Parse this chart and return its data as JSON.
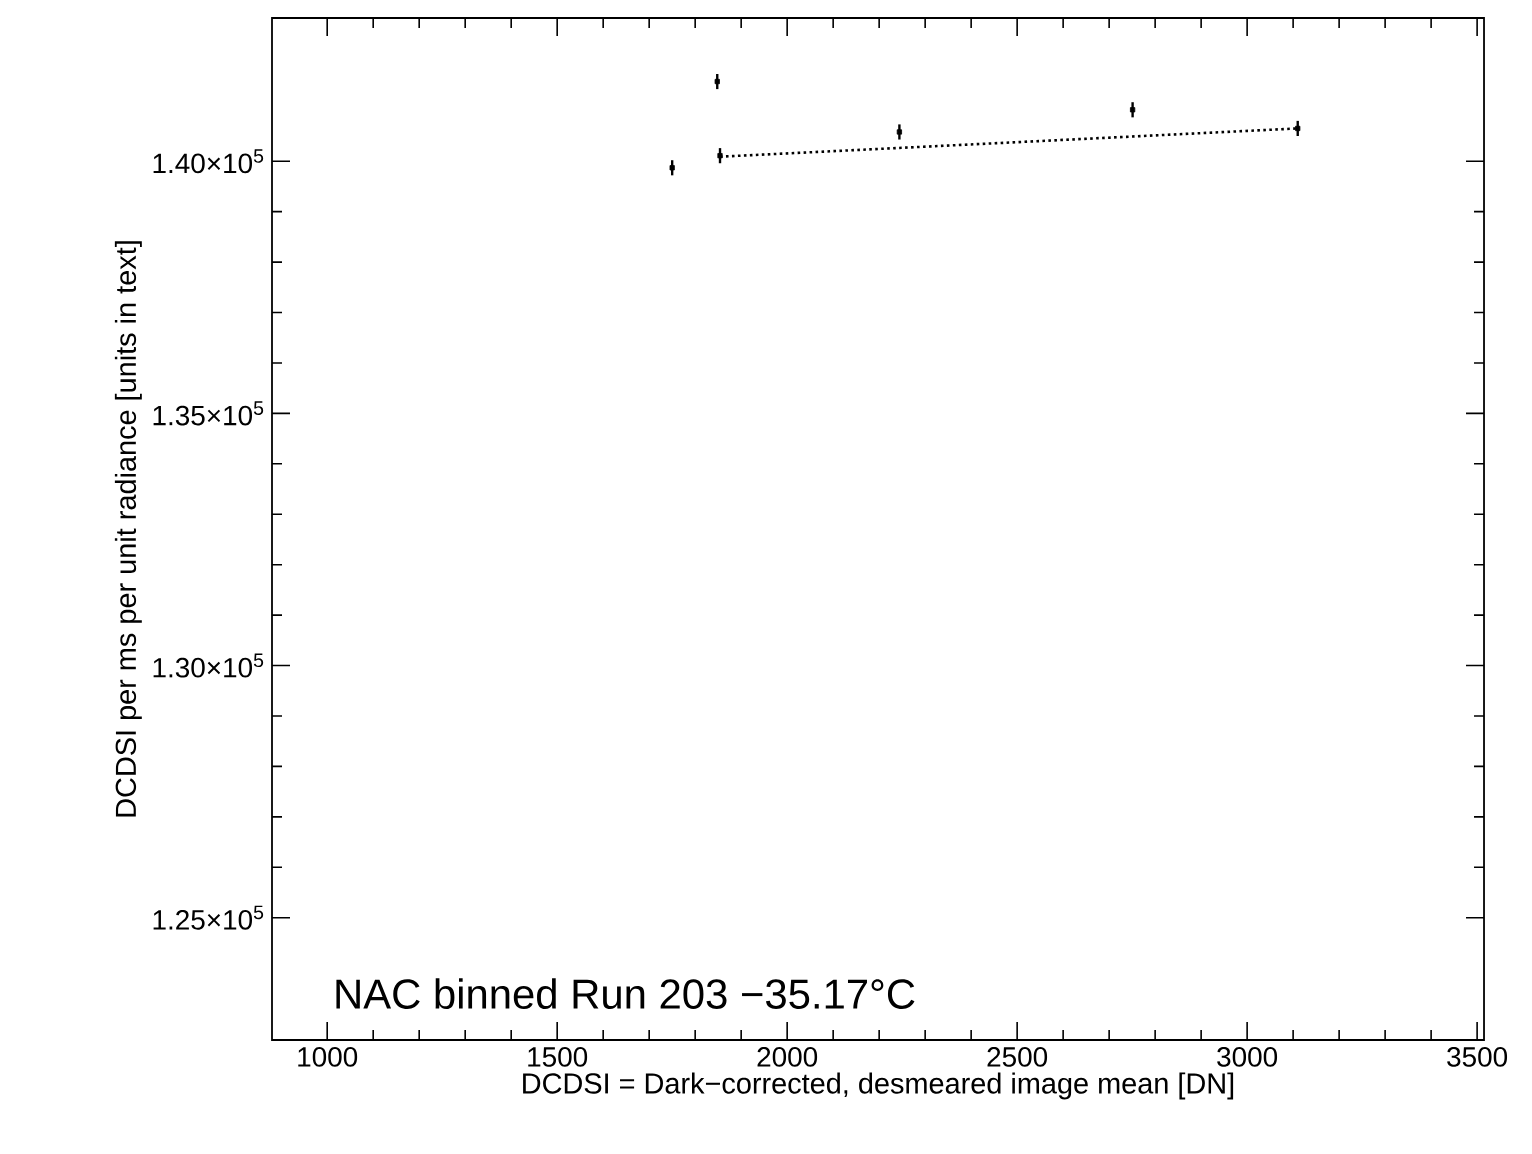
{
  "chart_data": {
    "type": "scatter",
    "xlabel": "DCDSI = Dark−corrected, desmeared image mean [DN]",
    "ylabel": "DCDSI per ms  per unit radiance [units in text]",
    "annotations": [
      "NAC binned Run 203 −35.17°C"
    ],
    "xlim": [
      880,
      3515
    ],
    "xticks": [
      1000,
      1500,
      2000,
      2500,
      3000,
      3500
    ],
    "ylim": [
      122575,
      142840
    ],
    "yticks": [
      {
        "value": 125000,
        "label": "1.25×10$^{5}$"
      },
      {
        "value": 130000,
        "label": "1.30×10$^{5}$"
      },
      {
        "value": 135000,
        "label": "1.35×10$^{5}$"
      },
      {
        "value": 140000,
        "label": "1.40×10$^{5}$"
      }
    ],
    "grid": false,
    "series": [
      {
        "color": "#000000",
        "marker": "square",
        "x": [
          1750,
          1848,
          1854,
          2244,
          2751,
          3110
        ],
        "values": [
          139870,
          141580,
          140110,
          140580,
          141020,
          140650
        ],
        "errors": [
          150,
          150,
          150,
          150,
          150,
          150
        ]
      },
      {
        "type": "line",
        "color": "#000000",
        "marker": "none",
        "line_style": "dotted",
        "x": [
          1854,
          3110
        ],
        "values": [
          140090,
          140650
        ]
      }
    ]
  }
}
